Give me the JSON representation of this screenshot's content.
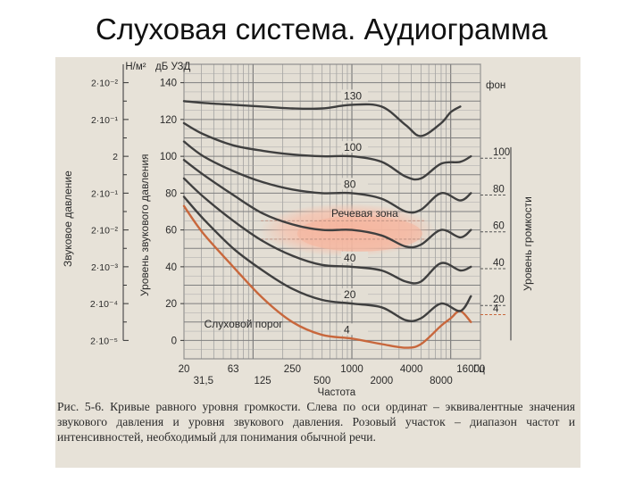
{
  "title": "Слуховая система. Аудиограмма",
  "figure": {
    "left_axis_title": "Звуковое давление",
    "left_axis_unit": "Н/м²",
    "pressure_ticks": [
      "2·10⁻⁵",
      "2·10⁻⁴",
      "2·10⁻³",
      "2·10⁻²",
      "2·10⁻¹",
      "2",
      "2·10⁻¹",
      "2·10⁻²"
    ],
    "mid_axis_title": "Уровень звукового давления",
    "mid_axis_unit": "дБ УЗД",
    "right_axis_title": "Уровень громкости",
    "right_axis_unit": "фон",
    "speech_zone_label": "Речевая зона",
    "threshold_label": "Слуховой порог",
    "x_title": "Частота",
    "x_unit": "Гц"
  },
  "chart_data": {
    "type": "line",
    "x_scale": "log",
    "x_ticks_row1": [
      "20",
      "63",
      "250",
      "1000",
      "4000",
      "16000"
    ],
    "x_ticks_row2": [
      "31,5",
      "125",
      "500",
      "2000",
      "8000"
    ],
    "y_ticks": [
      "0",
      "20",
      "40",
      "60",
      "80",
      "100",
      "120",
      "140"
    ],
    "ylim": [
      -10,
      150
    ],
    "xlim": [
      20,
      20000
    ],
    "right_ticks": [
      "100",
      "80",
      "60",
      "40",
      "20",
      "4"
    ],
    "grid": true,
    "series": [
      {
        "name": "4",
        "color": "#c8673c",
        "inline_label": "4",
        "label_x": 1000,
        "x": [
          20,
          31.5,
          63,
          125,
          250,
          500,
          1000,
          2000,
          3500,
          5000,
          8000,
          10000,
          12500,
          16000
        ],
        "y": [
          73,
          58,
          40,
          23,
          10,
          3,
          1,
          -2,
          -4,
          -2,
          8,
          12,
          16,
          10
        ]
      },
      {
        "name": "20",
        "color": "#3f3f3f",
        "inline_label": "20",
        "label_x": 1000,
        "x": [
          20,
          31.5,
          63,
          125,
          250,
          500,
          1000,
          2000,
          3500,
          5000,
          8000,
          12500,
          16000
        ],
        "y": [
          78,
          66,
          50,
          38,
          28,
          22,
          20,
          18,
          11,
          12,
          20,
          16,
          24
        ]
      },
      {
        "name": "40",
        "color": "#3f3f3f",
        "inline_label": "40",
        "label_x": 1000,
        "x": [
          20,
          31.5,
          63,
          125,
          250,
          500,
          1000,
          2000,
          3500,
          5000,
          8000,
          12500,
          16000
        ],
        "y": [
          88,
          78,
          65,
          54,
          46,
          41,
          40,
          38,
          32,
          32,
          42,
          38,
          40
        ]
      },
      {
        "name": "60",
        "color": "#3f3f3f",
        "inline_label": "",
        "label_x": 1000,
        "x": [
          20,
          31.5,
          63,
          125,
          250,
          500,
          1000,
          2000,
          3500,
          5000,
          8000,
          12500,
          16000
        ],
        "y": [
          98,
          90,
          79,
          69,
          63,
          60,
          60,
          57,
          51,
          52,
          60,
          56,
          60
        ]
      },
      {
        "name": "80",
        "color": "#3f3f3f",
        "inline_label": "80",
        "label_x": 1000,
        "x": [
          20,
          31.5,
          63,
          125,
          250,
          500,
          1000,
          2000,
          3500,
          5000,
          8000,
          12500,
          16000
        ],
        "y": [
          108,
          100,
          92,
          86,
          82,
          80,
          80,
          77,
          70,
          71,
          80,
          76,
          80
        ]
      },
      {
        "name": "100",
        "color": "#3f3f3f",
        "inline_label": "100",
        "label_x": 1000,
        "x": [
          20,
          31.5,
          63,
          125,
          250,
          500,
          1000,
          2000,
          3500,
          5000,
          8000,
          12500,
          16000
        ],
        "y": [
          118,
          112,
          106,
          103,
          101,
          100,
          100,
          97,
          89,
          88,
          96,
          97,
          100
        ]
      },
      {
        "name": "130",
        "color": "#3f3f3f",
        "inline_label": "130",
        "label_x": 1000,
        "x": [
          20,
          31.5,
          63,
          125,
          250,
          500,
          1000,
          2000,
          3500,
          5000,
          8000,
          10000,
          12500
        ],
        "y": [
          130,
          129,
          128,
          127,
          126,
          126,
          128,
          127,
          117,
          111,
          118,
          124,
          127
        ]
      }
    ]
  },
  "caption": "Рис. 5-6. Кривые равного уровня громкости. Слева по оси ординат – эквивалентные значения звукового давления и уровня звукового давления. Розовый участок – диапазон частот и интенсивностей, необходимый для понимания обычной речи."
}
